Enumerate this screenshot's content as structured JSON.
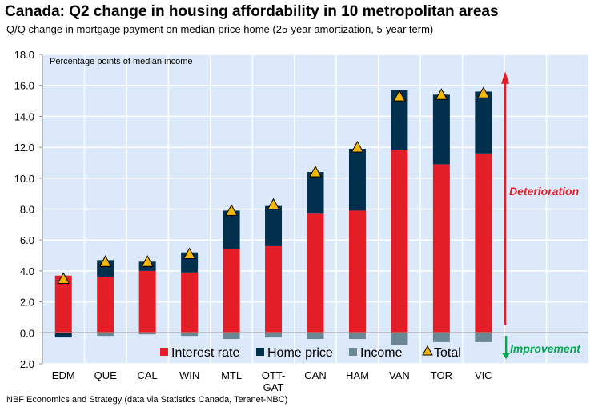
{
  "chart_data": {
    "type": "bar",
    "stacked": true,
    "title": "Canada: Q2 change in housing affordability in 10 metropolitan areas",
    "subtitle": "Q/Q change in mortgage payment on median-price home (25-year amortization, 5-year term)",
    "ylabel": "Percentage points of median income",
    "source": "NBF Economics and Strategy (data via Statistics Canada, Teranet-NBC)",
    "ylim": [
      -2,
      18
    ],
    "yticks": [
      "-2.0",
      "0.0",
      "2.0",
      "4.0",
      "6.0",
      "8.0",
      "10.0",
      "12.0",
      "14.0",
      "16.0",
      "18.0"
    ],
    "grid": true,
    "legend_position": "bottom",
    "categories": [
      "EDM",
      "QUE",
      "CAL",
      "WIN",
      "MTL",
      "OTT-GAT",
      "CAN",
      "HAM",
      "VAN",
      "TOR",
      "VIC"
    ],
    "series": [
      {
        "name": "Interest rate",
        "color": "#e31e26",
        "values": [
          3.7,
          3.6,
          4.0,
          3.9,
          5.4,
          5.6,
          7.7,
          7.9,
          11.8,
          10.9,
          11.6
        ]
      },
      {
        "name": "Home price",
        "color": "#00304d",
        "values": [
          -0.3,
          1.1,
          0.6,
          1.3,
          2.5,
          2.6,
          2.7,
          4.0,
          3.9,
          4.5,
          4.0
        ]
      },
      {
        "name": "Income",
        "color": "#6b8796",
        "values": [
          0.0,
          -0.2,
          -0.1,
          -0.2,
          -0.4,
          -0.3,
          -0.4,
          -0.4,
          -0.8,
          -0.6,
          -0.6
        ]
      },
      {
        "name": "Total",
        "color": "#f5b800",
        "marker": "triangle",
        "values": [
          3.4,
          4.5,
          4.5,
          5.0,
          7.8,
          8.2,
          10.3,
          11.9,
          15.2,
          15.3,
          15.4
        ]
      }
    ],
    "annotations": [
      {
        "text": "Deterioration",
        "color": "#e31e26",
        "direction": "up"
      },
      {
        "text": "Improvement",
        "color": "#00a651",
        "direction": "down"
      }
    ]
  }
}
